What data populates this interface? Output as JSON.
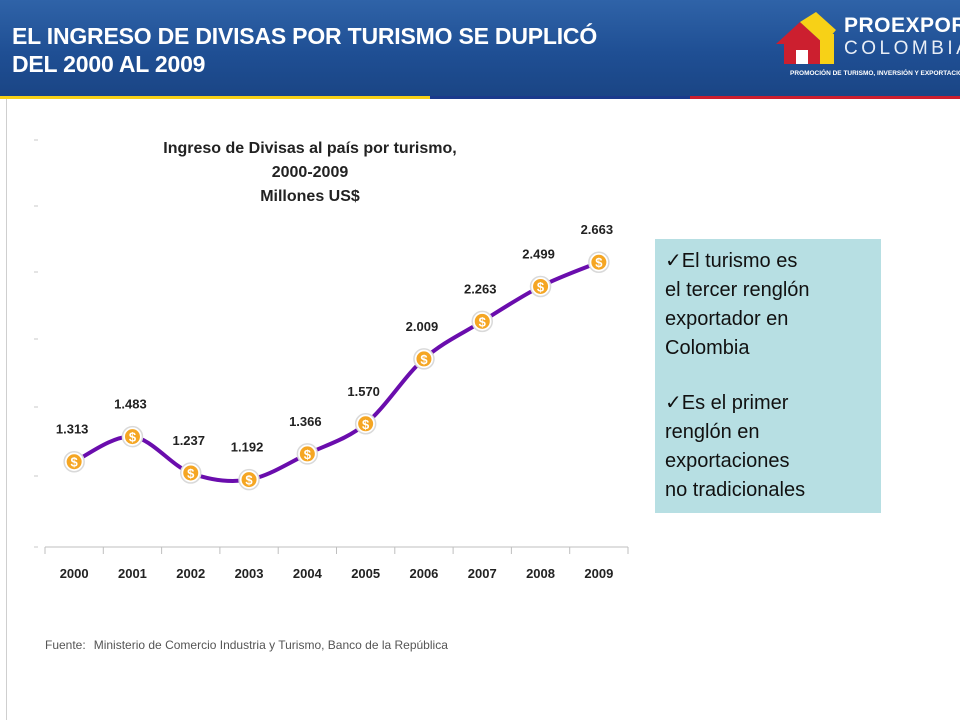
{
  "header": {
    "title": "EL INGRESO DE DIVISAS POR TURISMO SE DUPLICÓ\nDEL 2000 AL 2009",
    "background": "#1f4f94"
  },
  "logo": {
    "name": "PROEXPORT",
    "country": "COLOMBIA",
    "tagline": "PROMOCIÓN DE TURISMO, INVERSIÓN Y EXPORTACIONES."
  },
  "colors": {
    "line": "#6a0dad",
    "marker": "#f5a623",
    "callout_bg": "#b7dfe3",
    "flag_yellow": "#f7d117",
    "flag_blue": "#1a3a8c",
    "flag_red": "#cc1f2f"
  },
  "chart_data": {
    "type": "line",
    "title": [
      "Ingreso de Divisas al país por turismo,",
      "2000-2009",
      "Millones US$"
    ],
    "categories": [
      "2000",
      "2001",
      "2002",
      "2003",
      "2004",
      "2005",
      "2006",
      "2007",
      "2008",
      "2009"
    ],
    "values": [
      1313,
      1483,
      1237,
      1192,
      1366,
      1570,
      2009,
      2263,
      2499,
      2663
    ],
    "data_labels": [
      "1.313",
      "1.483",
      "1.237",
      "1.192",
      "1.366",
      "1.570",
      "2.009",
      "2.263",
      "2.499",
      "2.663"
    ],
    "series_name": "Millones US$",
    "marker_symbol": "$",
    "xlabel": "",
    "ylabel": "",
    "ylim": [
      0,
      3000
    ],
    "grid": false,
    "legend": "none"
  },
  "callout": {
    "point1": [
      "✓El turismo es",
      "el tercer renglón",
      "exportador en",
      "Colombia"
    ],
    "point2": [
      "✓Es el primer",
      "renglón en",
      "exportaciones",
      "no tradicionales"
    ]
  },
  "source": {
    "label": "Fuente:",
    "text": "Ministerio de Comercio Industria y Turismo, Banco de la República"
  }
}
